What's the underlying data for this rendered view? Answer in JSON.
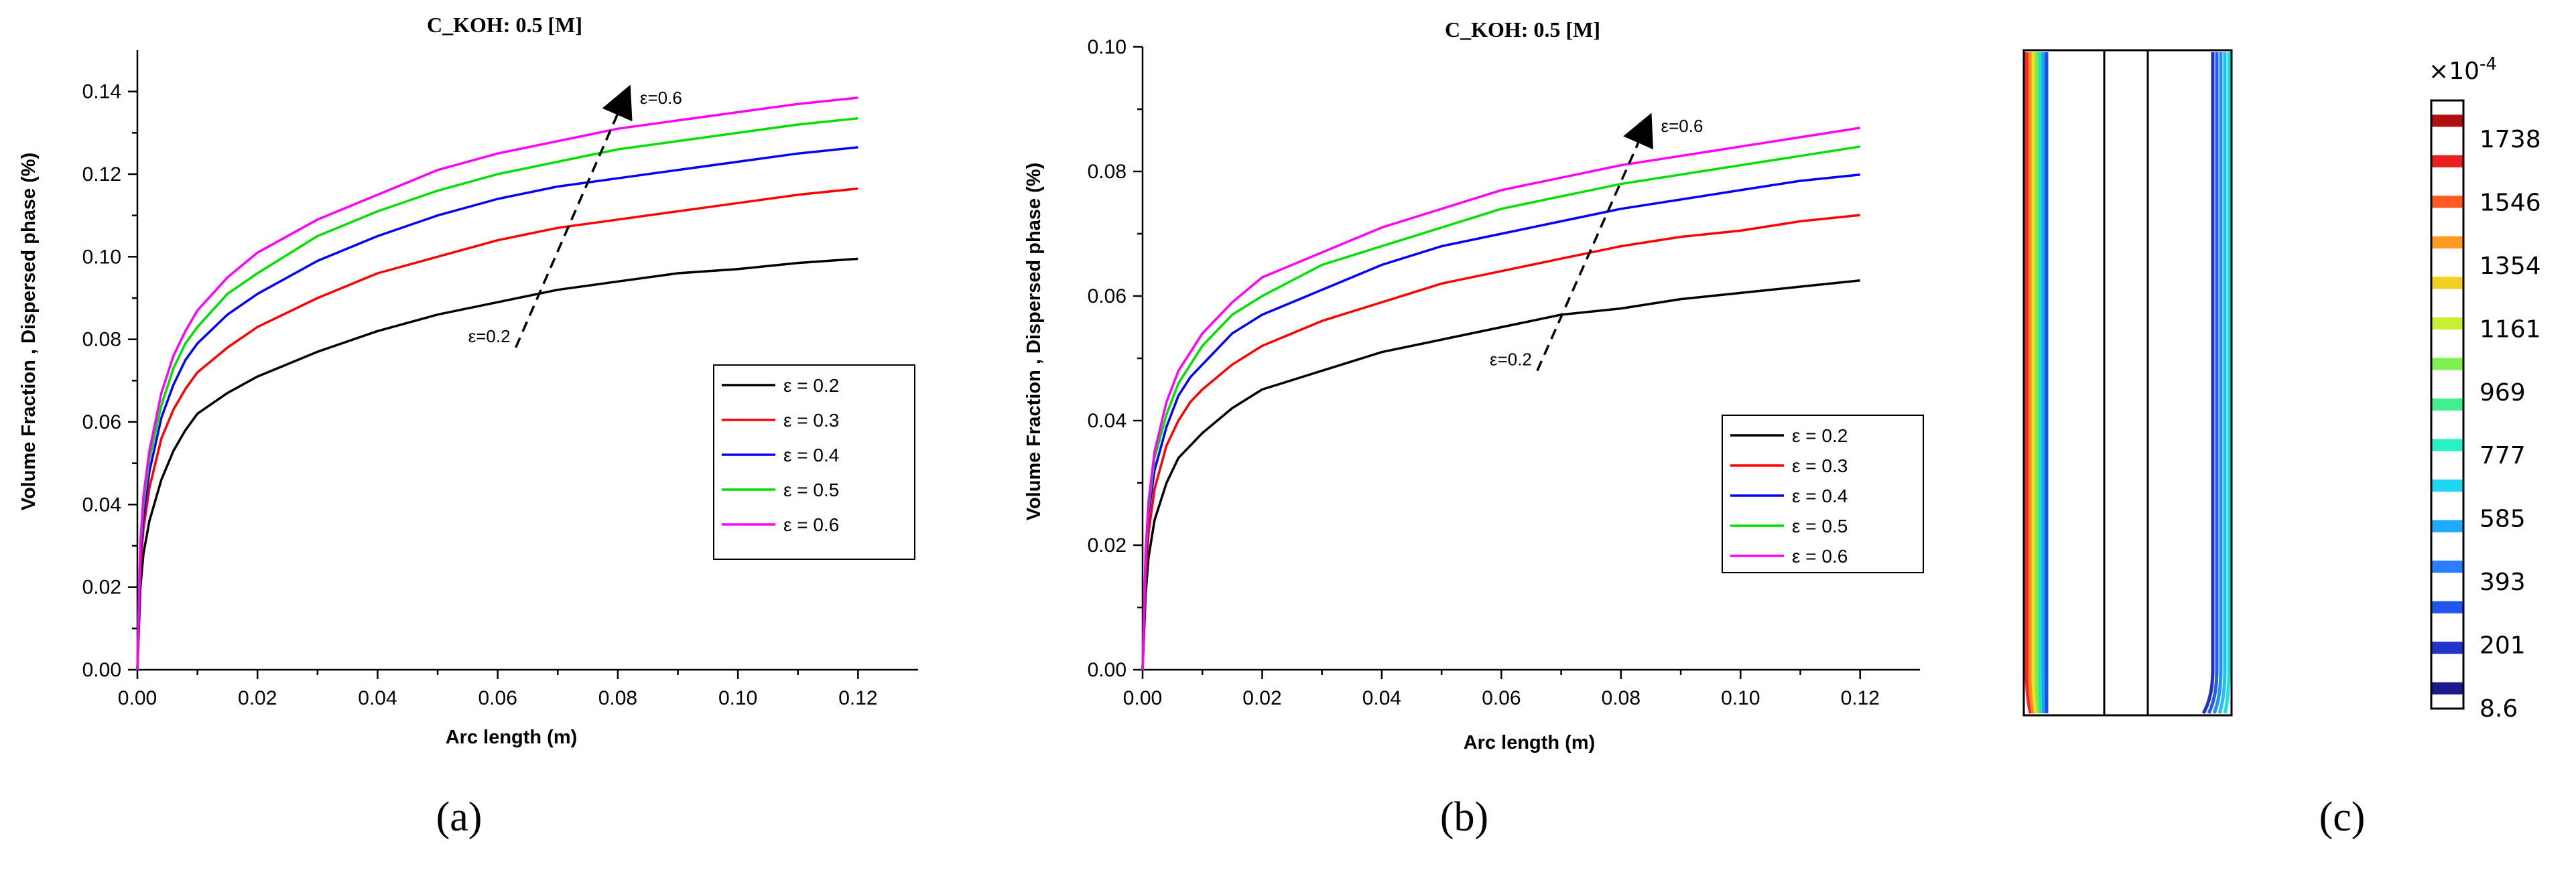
{
  "colors": {
    "series": [
      "#000000",
      "#ff0000",
      "#0000ff",
      "#00e000",
      "#ff00ff"
    ]
  },
  "chart_data": [
    {
      "panel_label": "(a)",
      "type": "line",
      "title": "C_KOH: 0.5 [M]",
      "xlabel": "Arc length (m)",
      "ylabel": "Volume Fraction , Dispersed phase (%)",
      "xlim": [
        0,
        0.13
      ],
      "ylim": [
        0,
        0.15
      ],
      "xticks": [
        0.0,
        0.02,
        0.04,
        0.06,
        0.08,
        0.1,
        0.12
      ],
      "xtick_labels": [
        "0.00",
        "0.02",
        "0.04",
        "0.06",
        "0.08",
        "0.10",
        "0.12"
      ],
      "yticks": [
        0.0,
        0.02,
        0.04,
        0.06,
        0.08,
        0.1,
        0.12,
        0.14
      ],
      "ytick_labels": [
        "0.00",
        "0.02",
        "0.04",
        "0.06",
        "0.08",
        "0.10",
        "0.12",
        "0.14"
      ],
      "legend_position": "right",
      "series": [
        {
          "name": "ε = 0.2",
          "x": [
            0,
            0.0005,
            0.001,
            0.002,
            0.004,
            0.006,
            0.008,
            0.01,
            0.015,
            0.02,
            0.03,
            0.04,
            0.05,
            0.06,
            0.07,
            0.08,
            0.09,
            0.1,
            0.11,
            0.12
          ],
          "y": [
            0,
            0.02,
            0.028,
            0.036,
            0.046,
            0.053,
            0.058,
            0.062,
            0.067,
            0.071,
            0.077,
            0.082,
            0.086,
            0.089,
            0.092,
            0.094,
            0.096,
            0.097,
            0.0985,
            0.0995
          ]
        },
        {
          "name": "ε = 0.3",
          "x": [
            0,
            0.0005,
            0.001,
            0.002,
            0.004,
            0.006,
            0.008,
            0.01,
            0.015,
            0.02,
            0.03,
            0.04,
            0.05,
            0.06,
            0.07,
            0.08,
            0.09,
            0.1,
            0.11,
            0.12
          ],
          "y": [
            0,
            0.025,
            0.034,
            0.044,
            0.056,
            0.063,
            0.068,
            0.072,
            0.078,
            0.083,
            0.09,
            0.096,
            0.1,
            0.104,
            0.107,
            0.109,
            0.111,
            0.113,
            0.115,
            0.1165
          ]
        },
        {
          "name": "ε = 0.4",
          "x": [
            0,
            0.0005,
            0.001,
            0.002,
            0.004,
            0.006,
            0.008,
            0.01,
            0.015,
            0.02,
            0.03,
            0.04,
            0.05,
            0.06,
            0.07,
            0.08,
            0.09,
            0.1,
            0.11,
            0.12
          ],
          "y": [
            0,
            0.028,
            0.037,
            0.048,
            0.061,
            0.069,
            0.075,
            0.079,
            0.086,
            0.091,
            0.099,
            0.105,
            0.11,
            0.114,
            0.117,
            0.119,
            0.121,
            0.123,
            0.125,
            0.1265
          ]
        },
        {
          "name": "ε = 0.5",
          "x": [
            0,
            0.0005,
            0.001,
            0.002,
            0.004,
            0.006,
            0.008,
            0.01,
            0.015,
            0.02,
            0.03,
            0.04,
            0.05,
            0.06,
            0.07,
            0.08,
            0.09,
            0.1,
            0.11,
            0.12
          ],
          "y": [
            0,
            0.03,
            0.04,
            0.051,
            0.064,
            0.073,
            0.079,
            0.083,
            0.091,
            0.096,
            0.105,
            0.111,
            0.116,
            0.12,
            0.123,
            0.126,
            0.128,
            0.13,
            0.132,
            0.1335
          ]
        },
        {
          "name": "ε = 0.6",
          "x": [
            0,
            0.0005,
            0.001,
            0.002,
            0.004,
            0.006,
            0.008,
            0.01,
            0.015,
            0.02,
            0.03,
            0.04,
            0.05,
            0.06,
            0.07,
            0.08,
            0.09,
            0.1,
            0.11,
            0.12
          ],
          "y": [
            0,
            0.031,
            0.042,
            0.053,
            0.067,
            0.076,
            0.082,
            0.087,
            0.095,
            0.101,
            0.109,
            0.115,
            0.121,
            0.125,
            0.128,
            0.131,
            0.133,
            0.135,
            0.137,
            0.1385
          ]
        }
      ],
      "annotations": {
        "start_label": "ε=0.2",
        "end_label": "ε=0.6",
        "arrow_from": [
          0.063,
          0.078
        ],
        "arrow_to": [
          0.081,
          0.138
        ]
      }
    },
    {
      "panel_label": "(b)",
      "type": "line",
      "title": "C_KOH: 0.5 [M]",
      "xlabel": "Arc length (m)",
      "ylabel": "Volume Fraction , Dispersed phase (%)",
      "xlim": [
        0,
        0.13
      ],
      "ylim": [
        0,
        0.1
      ],
      "xticks": [
        0.0,
        0.02,
        0.04,
        0.06,
        0.08,
        0.1,
        0.12
      ],
      "xtick_labels": [
        "0.00",
        "0.02",
        "0.04",
        "0.06",
        "0.08",
        "0.10",
        "0.12"
      ],
      "yticks": [
        0.0,
        0.02,
        0.04,
        0.06,
        0.08,
        0.1
      ],
      "ytick_labels": [
        "0.00",
        "0.02",
        "0.04",
        "0.06",
        "0.08",
        "0.10"
      ],
      "legend_position": "right",
      "series": [
        {
          "name": "ε = 0.2",
          "x": [
            0,
            0.0005,
            0.001,
            0.002,
            0.004,
            0.006,
            0.008,
            0.01,
            0.015,
            0.02,
            0.03,
            0.04,
            0.05,
            0.06,
            0.07,
            0.08,
            0.09,
            0.1,
            0.11,
            0.12
          ],
          "y": [
            0,
            0.012,
            0.018,
            0.024,
            0.03,
            0.034,
            0.036,
            0.038,
            0.042,
            0.045,
            0.048,
            0.051,
            0.053,
            0.055,
            0.057,
            0.058,
            0.0595,
            0.0605,
            0.0615,
            0.0625
          ]
        },
        {
          "name": "ε = 0.3",
          "x": [
            0,
            0.0005,
            0.001,
            0.002,
            0.004,
            0.006,
            0.008,
            0.01,
            0.015,
            0.02,
            0.03,
            0.04,
            0.05,
            0.06,
            0.07,
            0.08,
            0.09,
            0.1,
            0.11,
            0.12
          ],
          "y": [
            0,
            0.015,
            0.022,
            0.029,
            0.036,
            0.04,
            0.043,
            0.045,
            0.049,
            0.052,
            0.056,
            0.059,
            0.062,
            0.064,
            0.066,
            0.068,
            0.0695,
            0.0705,
            0.072,
            0.073
          ]
        },
        {
          "name": "ε = 0.4",
          "x": [
            0,
            0.0005,
            0.001,
            0.002,
            0.004,
            0.006,
            0.008,
            0.01,
            0.015,
            0.02,
            0.03,
            0.04,
            0.05,
            0.06,
            0.07,
            0.08,
            0.09,
            0.1,
            0.11,
            0.12
          ],
          "y": [
            0,
            0.017,
            0.025,
            0.032,
            0.039,
            0.044,
            0.047,
            0.049,
            0.054,
            0.057,
            0.061,
            0.065,
            0.068,
            0.07,
            0.072,
            0.074,
            0.0755,
            0.077,
            0.0785,
            0.0795
          ]
        },
        {
          "name": "ε = 0.5",
          "x": [
            0,
            0.0005,
            0.001,
            0.002,
            0.004,
            0.006,
            0.008,
            0.01,
            0.015,
            0.02,
            0.03,
            0.04,
            0.05,
            0.06,
            0.07,
            0.08,
            0.09,
            0.1,
            0.11,
            0.12
          ],
          "y": [
            0,
            0.018,
            0.026,
            0.034,
            0.041,
            0.046,
            0.049,
            0.052,
            0.057,
            0.06,
            0.065,
            0.068,
            0.071,
            0.074,
            0.076,
            0.078,
            0.0795,
            0.081,
            0.0825,
            0.084
          ]
        },
        {
          "name": "ε = 0.6",
          "x": [
            0,
            0.0005,
            0.001,
            0.002,
            0.004,
            0.006,
            0.008,
            0.01,
            0.015,
            0.02,
            0.03,
            0.04,
            0.05,
            0.06,
            0.07,
            0.08,
            0.09,
            0.1,
            0.11,
            0.12
          ],
          "y": [
            0,
            0.019,
            0.027,
            0.035,
            0.043,
            0.048,
            0.051,
            0.054,
            0.059,
            0.063,
            0.067,
            0.071,
            0.074,
            0.077,
            0.079,
            0.081,
            0.0825,
            0.084,
            0.0855,
            0.087
          ]
        }
      ],
      "annotations": {
        "start_label": "ε=0.2",
        "end_label": "ε=0.6",
        "arrow_from": [
          0.066,
          0.048
        ],
        "arrow_to": [
          0.084,
          0.087
        ]
      }
    }
  ],
  "panel_c": {
    "panel_label": "(c)",
    "colorbar_exponent_base": "×10",
    "colorbar_exponent_power": "-4",
    "colorbar_labels": [
      "1738",
      "1546",
      "1354",
      "1161",
      "969",
      "777",
      "585",
      "393",
      "201",
      "8.6"
    ]
  }
}
